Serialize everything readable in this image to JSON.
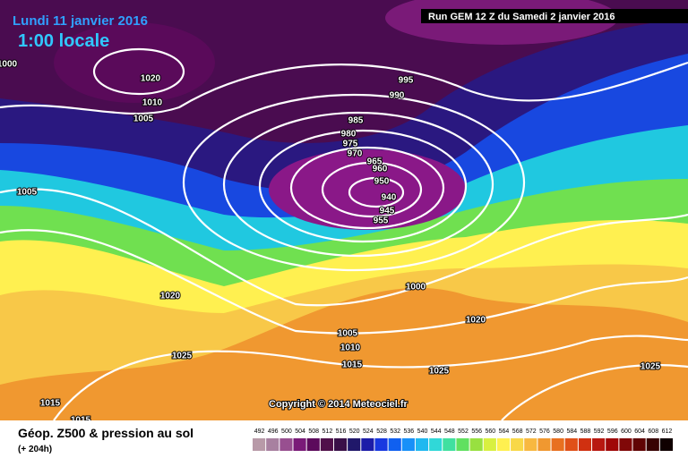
{
  "header": {
    "date": "Lundi 11 janvier 2016",
    "time": "1:00 locale",
    "run": "Run GEM 12 Z du Samedi 2 janvier 2016"
  },
  "isobar_labels": [
    "1020",
    "1010",
    "1005",
    "1000",
    "995",
    "990",
    "985",
    "980",
    "975",
    "970",
    "965",
    "960",
    "950",
    "940",
    "945",
    "955",
    "1005",
    "1020",
    "1025",
    "1000",
    "1005",
    "1010",
    "1015",
    "1020",
    "1025",
    "1025",
    "1015",
    "1015"
  ],
  "copyright": "Copyright © 2014 Meteociel.fr",
  "footer": {
    "title": "Géop. Z500 & pression au sol",
    "lead": "(+ 204h)"
  },
  "legend": {
    "labels": [
      "492",
      "496",
      "500",
      "504",
      "508",
      "512",
      "516",
      "520",
      "524",
      "528",
      "532",
      "536",
      "540",
      "544",
      "548",
      "552",
      "556",
      "560",
      "564",
      "568",
      "572",
      "576",
      "580",
      "584",
      "588",
      "592",
      "596",
      "600",
      "604",
      "608",
      "612"
    ],
    "colors": [
      "#b89aa8",
      "#a880a0",
      "#984f90",
      "#7a1a78",
      "#5c0a5c",
      "#50104a",
      "#3a1048",
      "#20186a",
      "#1c1ca8",
      "#1838e0",
      "#1060f0",
      "#1890f8",
      "#20b8f0",
      "#30d8d8",
      "#40e0a0",
      "#60e060",
      "#98e040",
      "#d8f040",
      "#fff050",
      "#f8d848",
      "#f8b840",
      "#f09830",
      "#e87020",
      "#e05018",
      "#d03010",
      "#b81810",
      "#a00808",
      "#800808",
      "#600404",
      "#380202",
      "#100000"
    ]
  }
}
